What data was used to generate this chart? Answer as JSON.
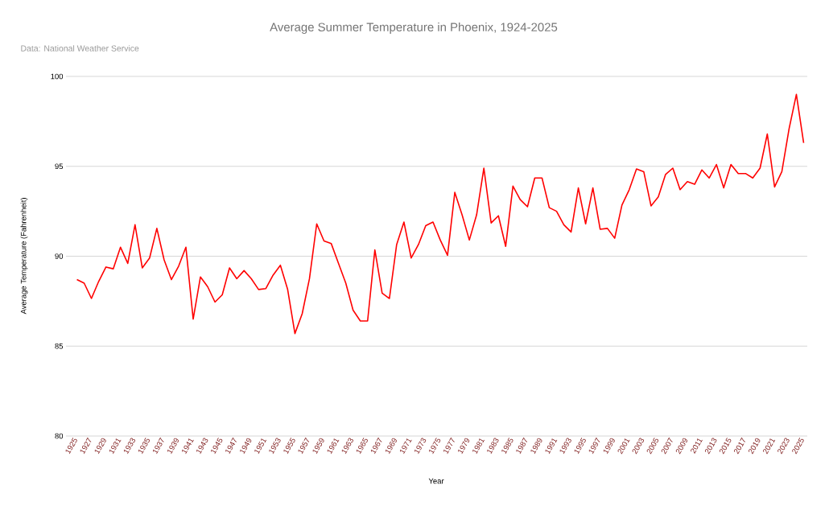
{
  "chart_data": {
    "type": "line",
    "title": "Average Summer Temperature in Phoenix, 1924-2025",
    "subtitle": "Data: National Weather Service",
    "xlabel": "Year",
    "ylabel": "Average Temperature (Fahrenheit)",
    "x": [
      1925,
      1926,
      1927,
      1928,
      1929,
      1930,
      1931,
      1932,
      1933,
      1934,
      1935,
      1936,
      1937,
      1938,
      1939,
      1940,
      1941,
      1942,
      1943,
      1944,
      1945,
      1946,
      1947,
      1948,
      1949,
      1950,
      1951,
      1952,
      1953,
      1954,
      1955,
      1956,
      1957,
      1958,
      1959,
      1960,
      1961,
      1962,
      1963,
      1964,
      1965,
      1966,
      1967,
      1968,
      1969,
      1970,
      1971,
      1972,
      1973,
      1974,
      1975,
      1976,
      1977,
      1978,
      1979,
      1980,
      1981,
      1982,
      1983,
      1984,
      1985,
      1986,
      1987,
      1988,
      1989,
      1990,
      1991,
      1992,
      1993,
      1994,
      1995,
      1996,
      1997,
      1998,
      1999,
      2000,
      2001,
      2002,
      2003,
      2004,
      2005,
      2006,
      2007,
      2008,
      2009,
      2010,
      2011,
      2012,
      2013,
      2014,
      2015,
      2016,
      2017,
      2018,
      2019,
      2020,
      2021,
      2022,
      2023,
      2024,
      2025
    ],
    "series": [
      {
        "color": "#ff0000",
        "values": [
          88.7,
          88.5,
          87.65,
          88.6,
          89.4,
          89.3,
          90.5,
          89.6,
          91.75,
          89.35,
          89.9,
          91.55,
          89.8,
          88.7,
          89.45,
          90.5,
          86.5,
          88.85,
          88.3,
          87.45,
          87.85,
          89.35,
          88.75,
          89.2,
          88.75,
          88.15,
          88.2,
          88.95,
          89.5,
          88.15,
          85.7,
          86.8,
          88.75,
          91.8,
          90.85,
          90.7,
          89.6,
          88.5,
          87.0,
          86.4,
          86.4,
          90.35,
          87.95,
          87.65,
          90.65,
          91.9,
          89.9,
          90.65,
          91.7,
          91.9,
          90.9,
          90.05,
          93.55,
          92.3,
          90.9,
          92.3,
          94.9,
          91.85,
          92.25,
          90.55,
          93.9,
          93.15,
          92.75,
          94.35,
          94.35,
          92.7,
          92.5,
          91.75,
          91.35,
          93.8,
          91.8,
          93.8,
          91.5,
          91.55,
          91.0,
          92.85,
          93.7,
          94.85,
          94.7,
          92.8,
          93.3,
          94.55,
          94.9,
          93.7,
          94.15,
          94.0,
          94.8,
          94.35,
          95.1,
          93.8,
          95.1,
          94.6,
          94.6,
          94.35,
          94.9,
          96.8,
          93.85,
          94.7,
          97.1,
          99.0,
          96.3
        ]
      }
    ],
    "xlim": [
      1923.5,
      2025.5
    ],
    "xticks": [
      1925,
      1927,
      1929,
      1931,
      1933,
      1935,
      1937,
      1939,
      1941,
      1943,
      1945,
      1947,
      1949,
      1951,
      1953,
      1955,
      1957,
      1959,
      1961,
      1963,
      1965,
      1967,
      1969,
      1971,
      1973,
      1975,
      1977,
      1979,
      1981,
      1983,
      1985,
      1987,
      1989,
      1991,
      1993,
      1995,
      1997,
      1999,
      2001,
      2003,
      2005,
      2007,
      2009,
      2011,
      2013,
      2015,
      2017,
      2019,
      2021,
      2023,
      2025
    ],
    "ylim": [
      80,
      100
    ],
    "yticks": [
      80,
      85,
      90,
      95,
      100
    ],
    "grid": "y",
    "marker": "none",
    "line_style": "solid"
  }
}
